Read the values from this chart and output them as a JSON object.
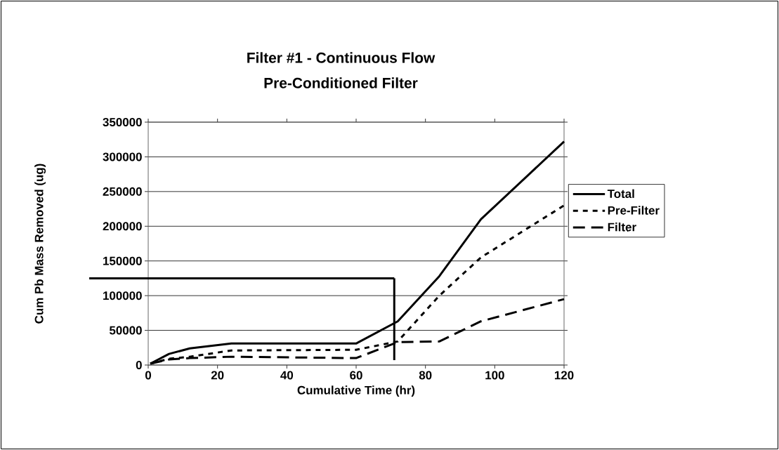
{
  "chart_data": {
    "type": "line",
    "title": "Filter #1 - Continuous Flow",
    "subtitle": "Pre-Conditioned Filter",
    "xlabel": "Cumulative Time (hr)",
    "ylabel": "Cum Pb Mass Removed (ug)",
    "xlim": [
      0,
      120
    ],
    "xticks": [
      0,
      20,
      40,
      60,
      80,
      100,
      120
    ],
    "ylim": [
      0,
      350000
    ],
    "yticks": [
      0,
      50000,
      100000,
      150000,
      200000,
      250000,
      300000,
      350000
    ],
    "grid": "y",
    "legend": "right",
    "marker": "none",
    "series": [
      {
        "name": "Total",
        "color": "#000000",
        "line_style": "solid",
        "x": [
          0.6,
          6,
          12,
          24,
          60,
          72,
          84,
          96,
          120
        ],
        "values": [
          2000,
          16000,
          24000,
          31000,
          31000,
          63000,
          128000,
          210000,
          322000
        ]
      },
      {
        "name": "Pre-Filter",
        "color": "#000000",
        "line_style": "dotted",
        "x": [
          0.6,
          6,
          12,
          24,
          60,
          72,
          84,
          96,
          120
        ],
        "values": [
          2000,
          9000,
          12000,
          21000,
          22000,
          34000,
          100000,
          155000,
          230000
        ]
      },
      {
        "name": "Filter",
        "color": "#000000",
        "line_style": "dashed",
        "x": [
          0.6,
          6,
          12,
          24,
          60,
          72,
          84,
          96,
          120
        ],
        "values": [
          2000,
          8000,
          10000,
          12000,
          10000,
          33000,
          34000,
          63000,
          95000
        ]
      }
    ],
    "ref_lines": [
      {
        "axis": "y",
        "value": 125000,
        "color": "#000000"
      },
      {
        "axis": "x",
        "value": 71,
        "color": "#000000"
      }
    ]
  }
}
